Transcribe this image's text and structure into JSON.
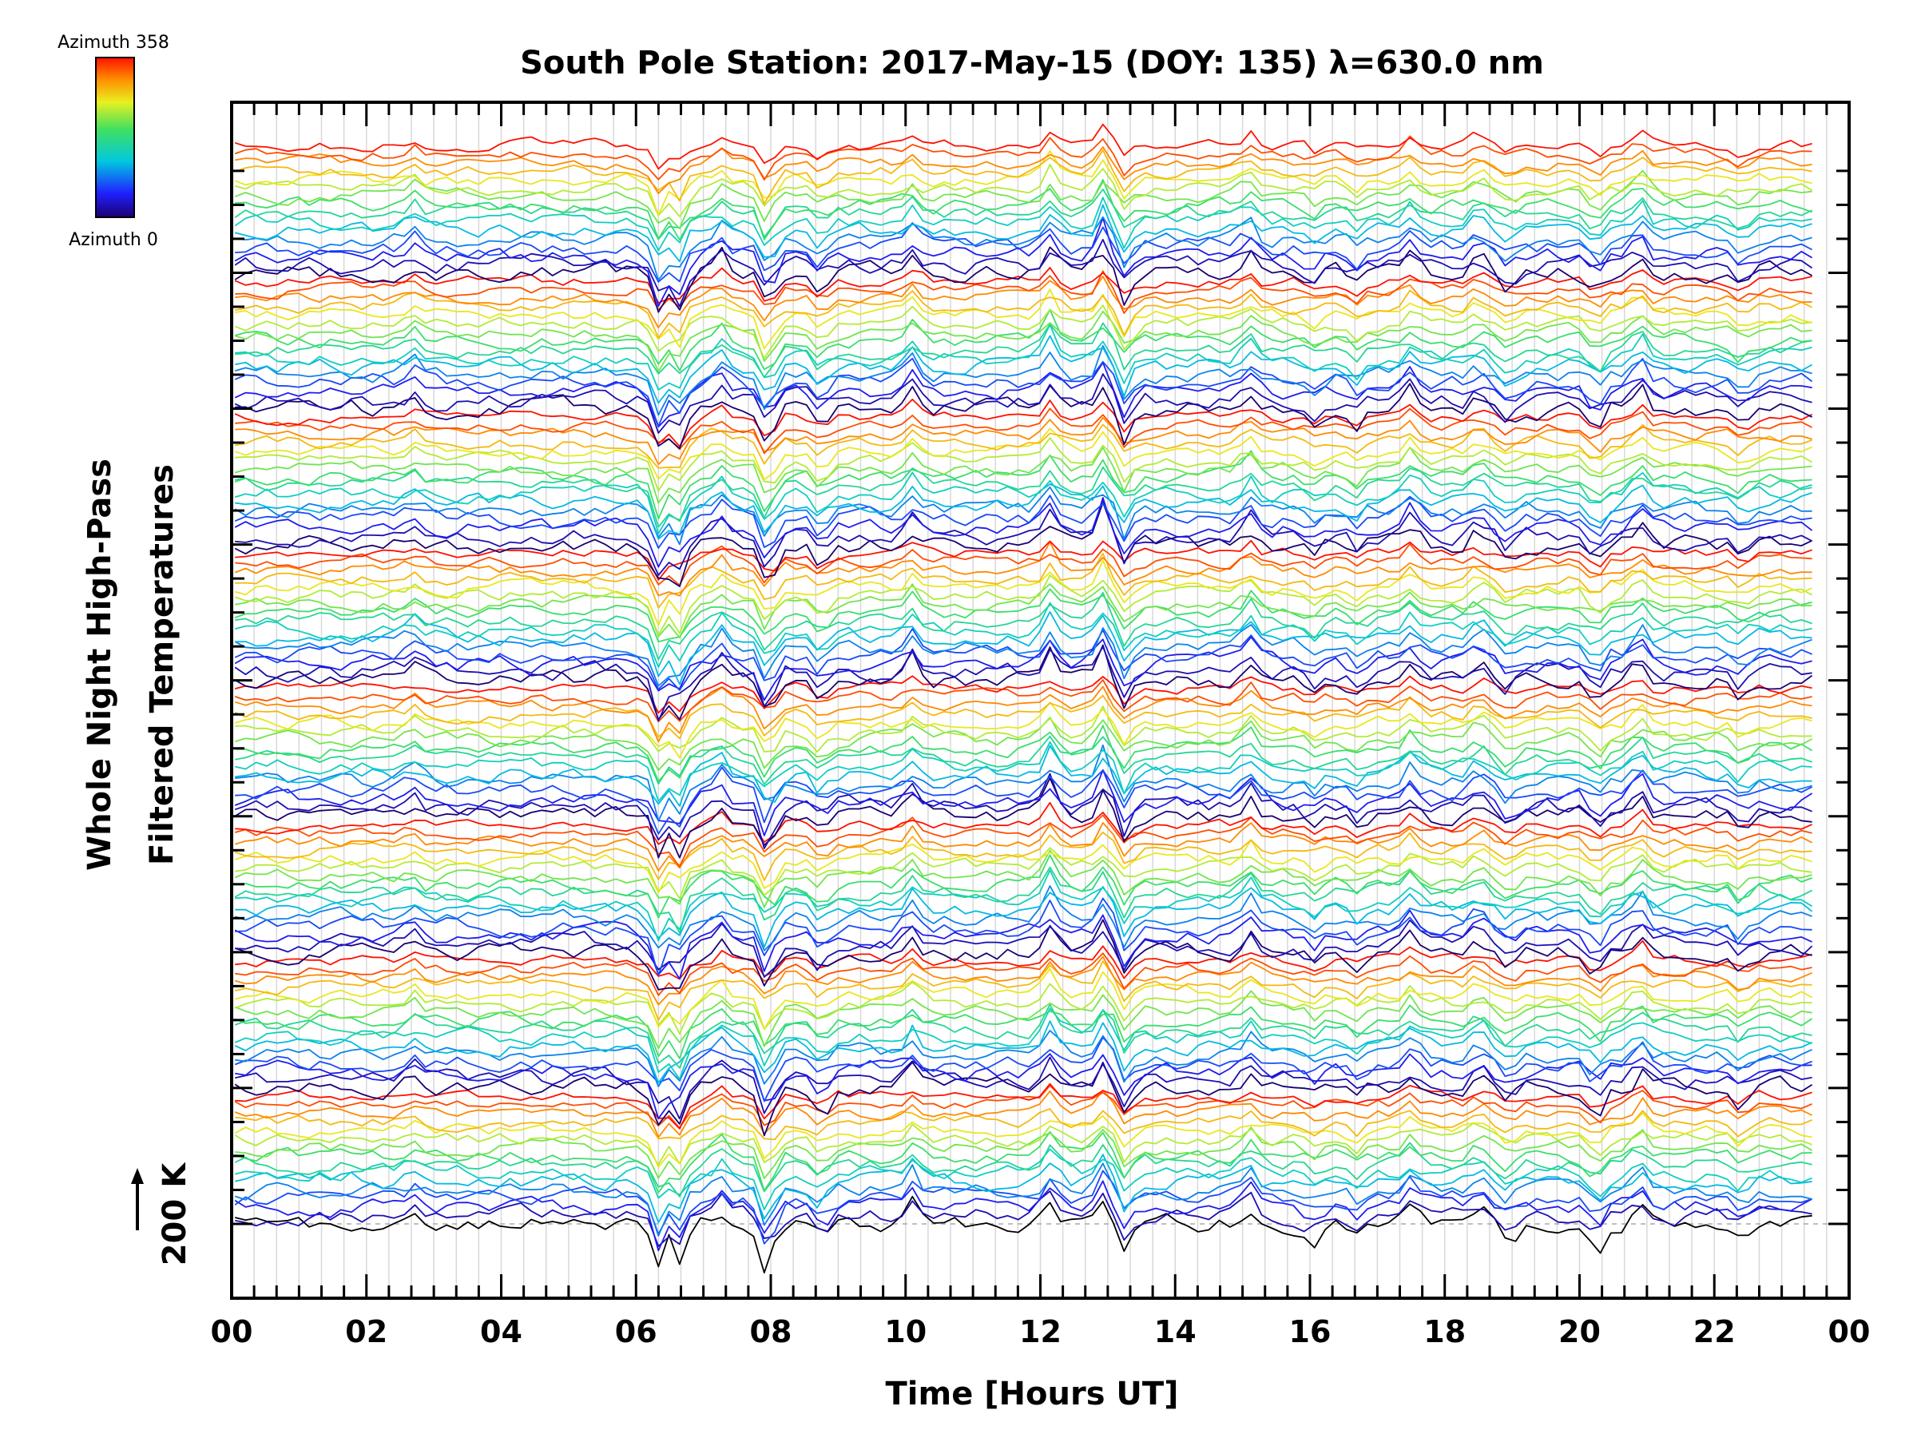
{
  "chart_data": {
    "type": "line",
    "title": "South Pole Station: 2017-May-15 (DOY: 135) λ=630.0 nm",
    "xlabel": "Time [Hours UT]",
    "ylabel_line1": "Whole Night High-Pass",
    "ylabel_line2": "Filtered Temperatures",
    "scale_label": "200 K",
    "xlim": [
      0,
      24
    ],
    "x_ticks": [
      "00",
      "02",
      "04",
      "06",
      "08",
      "10",
      "12",
      "14",
      "16",
      "18",
      "20",
      "22",
      "00"
    ],
    "colorbar": {
      "top_label": "Azimuth 358",
      "bottom_label": "Azimuth 0",
      "min": 0,
      "max": 358
    },
    "grid": true,
    "series_count": 128,
    "bands": 8,
    "events": [
      {
        "t": 2.7,
        "amp": 1.0
      },
      {
        "t": 6.35,
        "amp": -3.2
      },
      {
        "t": 6.65,
        "amp": -2.8
      },
      {
        "t": 7.25,
        "amp": 1.2
      },
      {
        "t": 7.95,
        "amp": -3.0
      },
      {
        "t": 8.75,
        "amp": -1.4
      },
      {
        "t": 10.1,
        "amp": 1.5
      },
      {
        "t": 12.15,
        "amp": 2.0
      },
      {
        "t": 12.95,
        "amp": 2.2
      },
      {
        "t": 13.25,
        "amp": -2.0
      },
      {
        "t": 15.1,
        "amp": 1.6
      },
      {
        "t": 16.05,
        "amp": -0.9
      },
      {
        "t": 16.7,
        "amp": -1.0
      },
      {
        "t": 17.5,
        "amp": 1.4
      },
      {
        "t": 18.5,
        "amp": 1.2
      },
      {
        "t": 18.95,
        "amp": -1.0
      },
      {
        "t": 20.25,
        "amp": -1.6
      },
      {
        "t": 20.9,
        "amp": 1.6
      },
      {
        "t": 22.4,
        "amp": -1.1
      }
    ]
  }
}
